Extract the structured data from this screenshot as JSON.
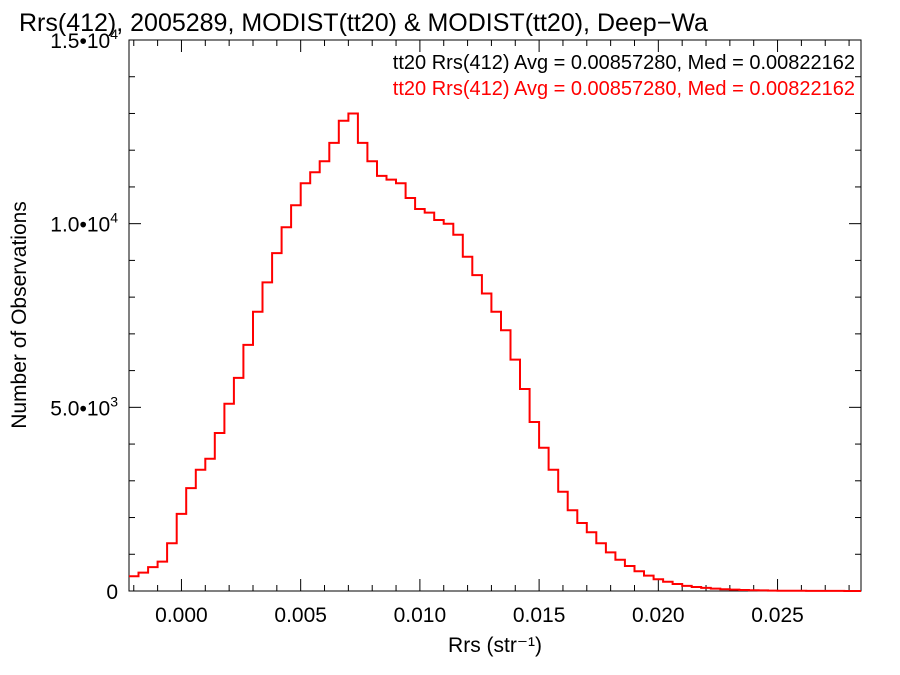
{
  "chart_data": {
    "type": "line",
    "title": "Rrs(412), 2005289, MODIST(tt20) & MODIST(tt20), Deep−Wa",
    "xlabel": "Rrs (str⁻¹)",
    "ylabel": "Number of Observations",
    "xlim": [
      -0.0022,
      0.0285
    ],
    "ylim": [
      0,
      15000
    ],
    "x_ticks": [
      0.0,
      0.005,
      0.01,
      0.015,
      0.02,
      0.025
    ],
    "x_tick_labels": [
      "0.000",
      "0.005",
      "0.010",
      "0.015",
      "0.020",
      "0.025"
    ],
    "y_ticks": [
      0,
      5000,
      10000,
      15000
    ],
    "y_tick_labels": [
      {
        "base": "0",
        "exp": ""
      },
      {
        "base": "5.0•10",
        "exp": "3"
      },
      {
        "base": "1.0•10",
        "exp": "4"
      },
      {
        "base": "1.5•10",
        "exp": "4"
      }
    ],
    "legend": [
      {
        "text": "tt20 Rrs(412) Avg = 0.00857280, Med = 0.00822162",
        "color": "#000000"
      },
      {
        "text": "tt20 Rrs(412) Avg = 0.00857280, Med = 0.00822162",
        "color": "#ff0000"
      }
    ],
    "legend_position": "top-right",
    "grid": false,
    "series": [
      {
        "color": "#ff0000",
        "style": "step",
        "x": [
          -0.0022,
          -0.0018,
          -0.0014,
          -0.001,
          -0.0006,
          -0.0002,
          0.0002,
          0.0006,
          0.001,
          0.0014,
          0.0018,
          0.0022,
          0.0026,
          0.003,
          0.0034,
          0.0038,
          0.0042,
          0.0046,
          0.005,
          0.0054,
          0.0058,
          0.0062,
          0.0066,
          0.007,
          0.0074,
          0.0078,
          0.0082,
          0.0086,
          0.009,
          0.0094,
          0.0098,
          0.0102,
          0.0106,
          0.011,
          0.0114,
          0.0118,
          0.0122,
          0.0126,
          0.013,
          0.0134,
          0.0138,
          0.0142,
          0.0146,
          0.015,
          0.0154,
          0.0158,
          0.0162,
          0.0166,
          0.017,
          0.0174,
          0.0178,
          0.0182,
          0.0186,
          0.019,
          0.0194,
          0.0198,
          0.0202,
          0.0206,
          0.021,
          0.0214,
          0.0218,
          0.0222,
          0.0226,
          0.023,
          0.0234,
          0.0238,
          0.0242,
          0.0246,
          0.025,
          0.0254,
          0.0258,
          0.0262,
          0.0266,
          0.027,
          0.0274,
          0.0278,
          0.0282
        ],
        "y": [
          400,
          500,
          650,
          800,
          1300,
          2100,
          2800,
          3300,
          3600,
          4300,
          5100,
          5800,
          6700,
          7600,
          8400,
          9200,
          9900,
          10500,
          11100,
          11400,
          11700,
          12200,
          12800,
          13000,
          12200,
          11700,
          11300,
          11200,
          11100,
          10700,
          10400,
          10300,
          10100,
          10000,
          9700,
          9100,
          8600,
          8100,
          7600,
          7100,
          6300,
          5500,
          4600,
          3900,
          3300,
          2700,
          2200,
          1850,
          1600,
          1300,
          1050,
          850,
          680,
          540,
          420,
          320,
          250,
          190,
          140,
          110,
          85,
          65,
          50,
          38,
          28,
          20,
          15,
          11,
          8,
          6,
          5,
          4,
          3,
          2,
          2,
          1,
          1
        ]
      }
    ]
  }
}
